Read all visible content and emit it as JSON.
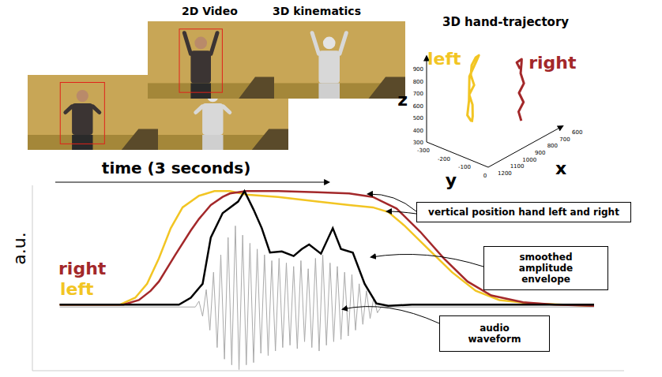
{
  "video": {
    "columns": [
      "2D Video",
      "3D kinematics"
    ]
  },
  "trajectory": {
    "title": "3D hand-trajectory",
    "xlabel": "x",
    "ylabel": "y",
    "zlabel": "z",
    "xlim": [
      600,
      1200
    ],
    "ylim": [
      -300,
      0
    ],
    "zlim": [
      300,
      1000
    ],
    "xticks": [
      600,
      700,
      800,
      900,
      1000,
      1100,
      1200
    ],
    "yticks": [
      -300,
      -200,
      -100,
      0
    ],
    "zticks": [
      300,
      400,
      500,
      600,
      700,
      800,
      900
    ],
    "series": [
      {
        "name": "left",
        "color": "#f2c523",
        "points": [
          [
            1000,
            -200,
            420
          ],
          [
            1010,
            -190,
            480
          ],
          [
            995,
            -200,
            560
          ],
          [
            1005,
            -210,
            640
          ],
          [
            990,
            -195,
            720
          ],
          [
            1000,
            -205,
            800
          ],
          [
            985,
            -210,
            870
          ],
          [
            970,
            -200,
            930
          ],
          [
            960,
            -190,
            950
          ],
          [
            975,
            -195,
            900
          ],
          [
            995,
            -215,
            780
          ],
          [
            1015,
            -205,
            600
          ],
          [
            1020,
            -210,
            480
          ],
          [
            1005,
            -200,
            430
          ]
        ]
      },
      {
        "name": "right",
        "color": "#a3282a",
        "points": [
          [
            850,
            -50,
            450
          ],
          [
            855,
            -60,
            520
          ],
          [
            840,
            -45,
            600
          ],
          [
            860,
            -55,
            680
          ],
          [
            845,
            -40,
            760
          ],
          [
            855,
            -50,
            840
          ],
          [
            840,
            -55,
            910
          ],
          [
            855,
            -45,
            960
          ],
          [
            870,
            -60,
            930
          ],
          [
            860,
            -50,
            880
          ]
        ]
      }
    ]
  },
  "chart_data": {
    "type": "line",
    "ylabel": "a.u.",
    "time_arrow": {
      "label": "time (3 seconds)",
      "start": 0.26,
      "end": 3.26
    },
    "xlim": [
      0,
      6.5
    ],
    "ylim": [
      -0.55,
      1.05
    ],
    "tick_labels": false,
    "annotations": [
      "vertical position hand left and right"
    ],
    "series": [
      {
        "name": "right",
        "color": "#a3282a",
        "x": [
          0.3,
          1.0,
          1.17,
          1.3,
          1.39,
          1.57,
          1.74,
          1.83,
          1.96,
          2.09,
          2.17,
          2.35,
          2.7,
          3.13,
          3.48,
          3.74,
          4.0,
          4.26,
          4.52,
          4.78,
          5.04,
          5.39,
          5.74,
          6.17
        ],
        "values": [
          0.02,
          0.02,
          0.06,
          0.14,
          0.22,
          0.45,
          0.66,
          0.76,
          0.88,
          0.95,
          0.98,
          1.0,
          1.0,
          0.99,
          0.98,
          0.95,
          0.85,
          0.65,
          0.42,
          0.22,
          0.1,
          0.04,
          0.02,
          0.01
        ]
      },
      {
        "name": "left",
        "color": "#f2c523",
        "x": [
          0.3,
          0.96,
          1.13,
          1.26,
          1.39,
          1.52,
          1.65,
          1.83,
          2.0,
          2.17,
          2.35,
          2.7,
          3.13,
          3.48,
          3.74,
          3.91,
          4.09,
          4.35,
          4.61,
          4.87,
          5.13,
          5.48,
          5.83,
          6.17
        ],
        "values": [
          0.02,
          0.02,
          0.08,
          0.2,
          0.42,
          0.68,
          0.86,
          0.96,
          1.0,
          1.0,
          0.97,
          0.95,
          0.91,
          0.88,
          0.86,
          0.82,
          0.7,
          0.5,
          0.3,
          0.14,
          0.06,
          0.03,
          0.02,
          0.01
        ]
      },
      {
        "name": "smoothed amplitude envelope",
        "color": "#000000",
        "x": [
          0.3,
          1.61,
          1.74,
          1.87,
          1.96,
          2.09,
          2.26,
          2.33,
          2.43,
          2.52,
          2.61,
          2.74,
          2.87,
          2.96,
          3.04,
          3.17,
          3.3,
          3.39,
          3.52,
          3.65,
          3.78,
          3.91,
          4.17,
          6.17
        ],
        "values": [
          0.02,
          0.02,
          0.08,
          0.2,
          0.6,
          0.81,
          0.91,
          1.0,
          0.84,
          0.68,
          0.47,
          0.48,
          0.44,
          0.5,
          0.54,
          0.46,
          0.68,
          0.5,
          0.47,
          0.2,
          0.03,
          0.01,
          0.02,
          0.02
        ]
      },
      {
        "name": "audio waveform",
        "color": "#aaaaaa",
        "x": [
          0.3,
          1.79,
          1.83,
          1.87,
          1.91,
          1.95,
          1.99,
          2.03,
          2.07,
          2.11,
          2.15,
          2.19,
          2.23,
          2.27,
          2.31,
          2.35,
          2.39,
          2.43,
          2.47,
          2.51,
          2.55,
          2.59,
          2.63,
          2.67,
          2.71,
          2.75,
          2.79,
          2.83,
          2.87,
          2.91,
          2.95,
          2.99,
          3.03,
          3.07,
          3.11,
          3.15,
          3.19,
          3.23,
          3.27,
          3.31,
          3.35,
          3.39,
          3.43,
          3.47,
          3.51,
          3.55,
          3.59,
          3.63,
          3.67,
          3.71,
          3.75,
          3.79,
          3.83,
          6.17
        ],
        "values": [
          0,
          0,
          0.05,
          -0.08,
          0.15,
          -0.2,
          0.3,
          -0.35,
          0.45,
          -0.45,
          0.6,
          -0.5,
          0.7,
          -0.54,
          0.62,
          -0.5,
          0.55,
          -0.48,
          0.5,
          -0.4,
          0.45,
          -0.42,
          0.4,
          -0.38,
          0.42,
          -0.35,
          0.38,
          -0.33,
          0.35,
          -0.36,
          0.4,
          -0.3,
          0.33,
          -0.35,
          0.42,
          -0.38,
          0.45,
          -0.33,
          0.38,
          -0.3,
          0.35,
          -0.28,
          0.3,
          -0.25,
          0.28,
          -0.2,
          0.2,
          -0.15,
          0.14,
          -0.1,
          0.08,
          -0.05,
          0,
          0
        ]
      }
    ]
  }
}
